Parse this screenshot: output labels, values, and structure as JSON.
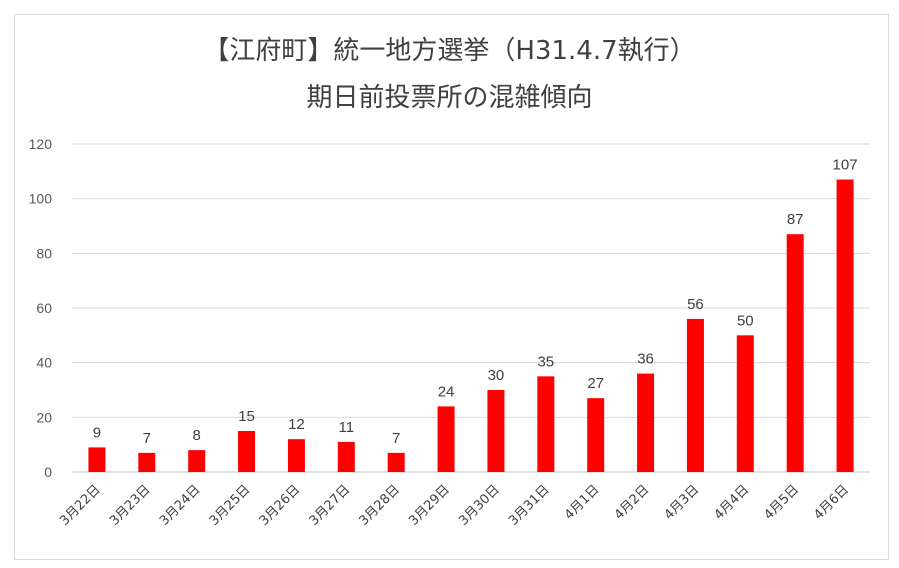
{
  "chart_data": {
    "type": "bar",
    "title": [
      "【江府町】統一地方選挙（H31.4.7執行）",
      "期日前投票所の混雑傾向"
    ],
    "categories": [
      "3月22日",
      "3月23日",
      "3月24日",
      "3月25日",
      "3月26日",
      "3月27日",
      "3月28日",
      "3月29日",
      "3月30日",
      "3月31日",
      "4月1日",
      "4月2日",
      "4月3日",
      "4月4日",
      "4月5日",
      "4月6日"
    ],
    "values": [
      9,
      7,
      8,
      15,
      12,
      11,
      7,
      24,
      30,
      35,
      27,
      36,
      56,
      50,
      87,
      107
    ],
    "yticks": [
      0,
      20,
      40,
      60,
      80,
      100,
      120
    ],
    "ylim": [
      0,
      120
    ],
    "xlabel": "",
    "ylabel": "",
    "grid": true,
    "legend": "none",
    "colors": {
      "bar": "#ff0000",
      "grid": "#d9d9d9",
      "axis": "#bfbfbf"
    }
  }
}
